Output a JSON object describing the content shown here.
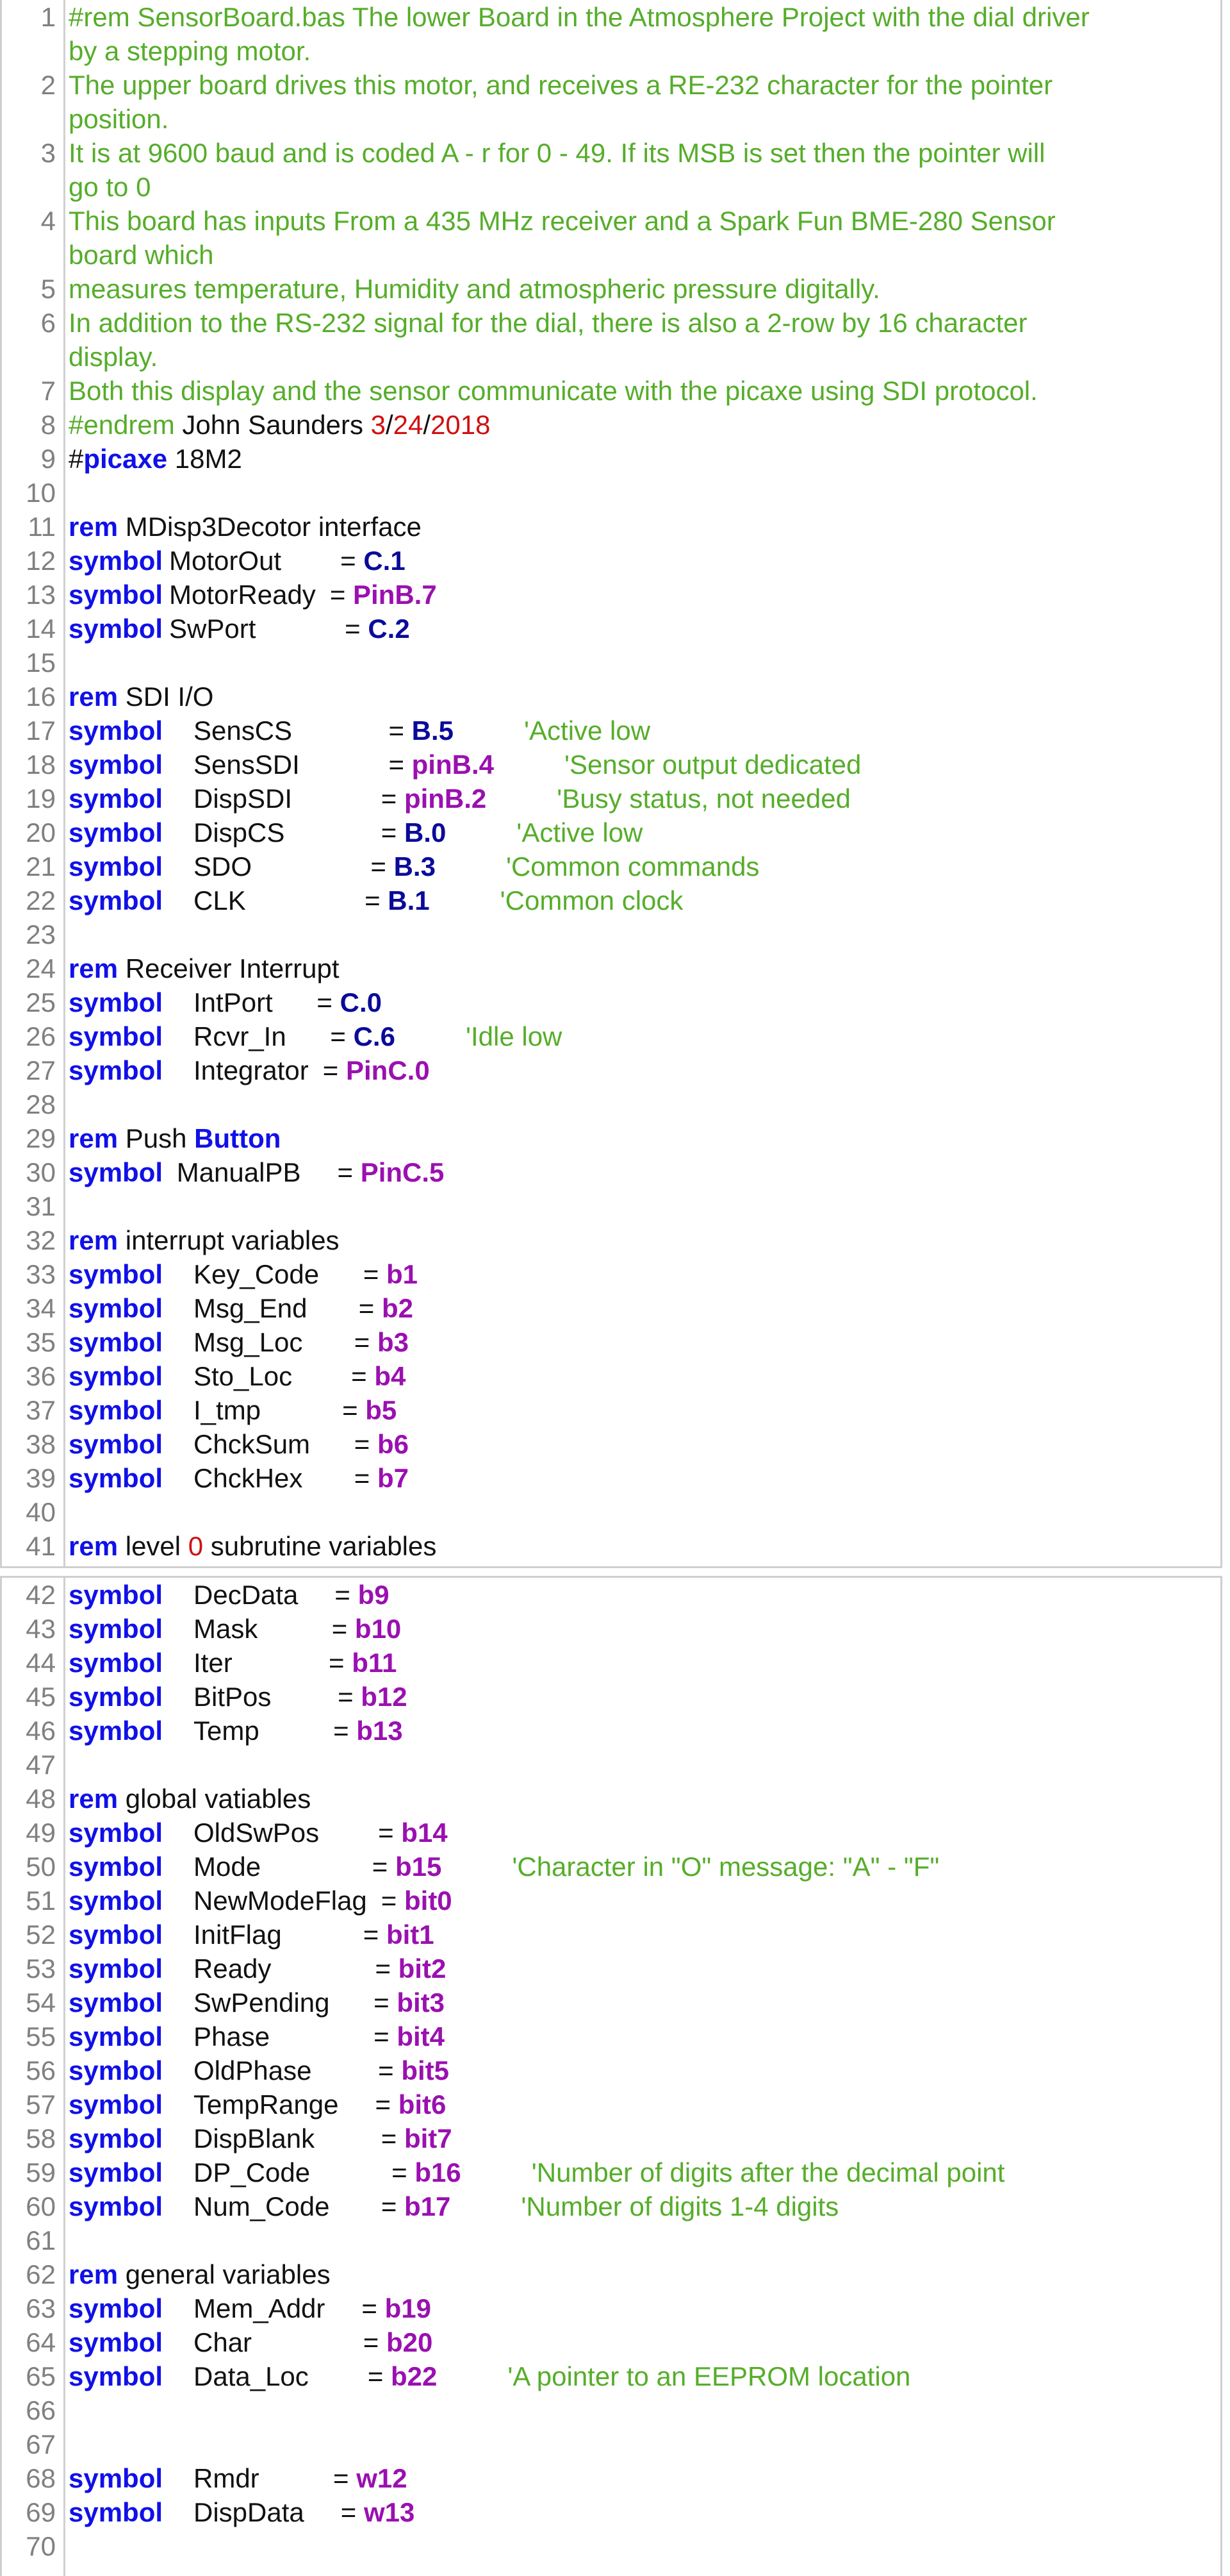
{
  "colors": {
    "keyword": "#1010e8",
    "pin": "#0a0a9a",
    "variable": "#9a10b0",
    "comment": "#56ad2a",
    "number": "#d01010",
    "line_number": "#808080"
  },
  "panels": [
    {
      "lines": [
        {
          "n": "1",
          "rows": [
            [
              {
                "c": "g",
                "s": "#rem SensorBoard.bas The lower Board in the Atmosphere Project with the dial driver"
              }
            ],
            [
              {
                "c": "g",
                "s": "by a stepping motor."
              }
            ]
          ]
        },
        {
          "n": "2",
          "rows": [
            [
              {
                "c": "g",
                "s": "The upper board drives this motor, and receives a RE-232 character for the pointer"
              }
            ],
            [
              {
                "c": "g",
                "s": "position."
              }
            ]
          ]
        },
        {
          "n": "3",
          "rows": [
            [
              {
                "c": "g",
                "s": "It is at 9600 baud and is coded  A - r for 0 - 49. If its MSB is set then the pointer will"
              }
            ],
            [
              {
                "c": "g",
                "s": "go to 0"
              }
            ]
          ]
        },
        {
          "n": "4",
          "rows": [
            [
              {
                "c": "g",
                "s": "This board has inputs From a 435 MHz receiver and a Spark Fun BME-280 Sensor"
              }
            ],
            [
              {
                "c": "g",
                "s": "board  which"
              }
            ]
          ]
        },
        {
          "n": "5",
          "rows": [
            [
              {
                "c": "g",
                "s": "measures temperature, Humidity and atmospheric pressure digitally."
              }
            ]
          ]
        },
        {
          "n": "6",
          "rows": [
            [
              {
                "c": "g",
                "s": "In addition to the RS-232 signal for the dial, there is also a 2-row by 16 character"
              }
            ],
            [
              {
                "c": "g",
                "s": "display."
              }
            ]
          ]
        },
        {
          "n": "7",
          "rows": [
            [
              {
                "c": "g",
                "s": "Both this display and the sensor communicate with the picaxe using SDI protocol."
              }
            ]
          ]
        },
        {
          "n": "8",
          "rows": [
            [
              {
                "c": "g",
                "s": "#endrem"
              },
              {
                "c": "t",
                "s": " John Saunders "
              },
              {
                "c": "r",
                "s": "3"
              },
              {
                "c": "t",
                "s": "/"
              },
              {
                "c": "r",
                "s": "24"
              },
              {
                "c": "t",
                "s": "/"
              },
              {
                "c": "r",
                "s": "2018"
              }
            ]
          ]
        },
        {
          "n": "9",
          "rows": [
            [
              {
                "c": "t",
                "s": "#"
              },
              {
                "c": "k",
                "s": "picaxe"
              },
              {
                "c": "t",
                "s": " 18M2"
              }
            ]
          ]
        },
        {
          "n": "10",
          "rows": [
            []
          ]
        },
        {
          "n": "11",
          "rows": [
            [
              {
                "c": "k",
                "s": "rem"
              },
              {
                "c": "t",
                "s": " MDisp3Decotor interface"
              }
            ]
          ]
        },
        {
          "n": "12",
          "sym": {
            "inline": true,
            "name": "MotorOut",
            "pad": "      ",
            "val": "C.1",
            "vc": "v"
          }
        },
        {
          "n": "13",
          "sym": {
            "inline": true,
            "name": "MotorReady",
            "pad": "",
            "val": "PinB.7",
            "vc": "p"
          }
        },
        {
          "n": "14",
          "sym": {
            "inline": true,
            "name": "SwPort",
            "pad": "          ",
            "val": "C.2",
            "vc": "v"
          }
        },
        {
          "n": "15",
          "rows": [
            []
          ]
        },
        {
          "n": "16",
          "rows": [
            [
              {
                "c": "k",
                "s": "rem"
              },
              {
                "c": "t",
                "s": " SDI I/O"
              }
            ]
          ]
        },
        {
          "n": "17",
          "sym": {
            "name": "SensCS",
            "pad": "           ",
            "val": "B.5",
            "vc": "v",
            "cmt": "'Active low"
          }
        },
        {
          "n": "18",
          "sym": {
            "name": "SensSDI",
            "pad": "          ",
            "val": "pinB.4",
            "vc": "p",
            "cmt": "'Sensor output dedicated"
          }
        },
        {
          "n": "19",
          "sym": {
            "name": "DispSDI",
            "pad": "          ",
            "val": "pinB.2",
            "vc": "p",
            "cmt": "'Busy  status, not needed"
          }
        },
        {
          "n": "20",
          "sym": {
            "name": "DispCS",
            "pad": "           ",
            "val": "B.0",
            "vc": "v",
            "cmt": "'Active low"
          }
        },
        {
          "n": "21",
          "sym": {
            "name": "SDO",
            "pad": "              ",
            "val": "B.3",
            "vc": "v",
            "cmt": "'Common commands"
          }
        },
        {
          "n": "22",
          "sym": {
            "name": "CLK",
            "pad": "              ",
            "val": "B.1",
            "vc": "v",
            "cmt": "'Common clock"
          }
        },
        {
          "n": "23",
          "rows": [
            []
          ]
        },
        {
          "n": "24",
          "rows": [
            [
              {
                "c": "k",
                "s": "rem"
              },
              {
                "c": "t",
                "s": " Receiver Interrupt"
              }
            ]
          ]
        },
        {
          "n": "25",
          "sym": {
            "name": "IntPort",
            "pad": "    ",
            "val": "C.0",
            "vc": "v"
          }
        },
        {
          "n": "26",
          "sym": {
            "name": "Rcvr_In",
            "pad": "    ",
            "val": "C.6",
            "vc": "v",
            "cmt": "'Idle low"
          }
        },
        {
          "n": "27",
          "sym": {
            "name": "Integrator",
            "pad": "",
            "val": "PinC.0",
            "vc": "p"
          }
        },
        {
          "n": "28",
          "rows": [
            []
          ]
        },
        {
          "n": "29",
          "rows": [
            [
              {
                "c": "k",
                "s": "rem"
              },
              {
                "c": "t",
                "s": " Push "
              },
              {
                "c": "k",
                "s": "Button"
              }
            ]
          ]
        },
        {
          "n": "30",
          "sym": {
            "inline": true,
            "name": " ManualPB",
            "pad": "   ",
            "val": "PinC.5",
            "vc": "p"
          }
        },
        {
          "n": "31",
          "rows": [
            []
          ]
        },
        {
          "n": "32",
          "rows": [
            [
              {
                "c": "k",
                "s": "rem"
              },
              {
                "c": "t",
                "s": " interrupt variables"
              }
            ]
          ]
        },
        {
          "n": "33",
          "sym": {
            "name": "Key_Code",
            "pad": "    ",
            "val": "b1",
            "vc": "p"
          }
        },
        {
          "n": "34",
          "sym": {
            "name": "Msg_End",
            "pad": "     ",
            "val": "b2",
            "vc": "p"
          }
        },
        {
          "n": "35",
          "sym": {
            "name": "Msg_Loc",
            "pad": "     ",
            "val": "b3",
            "vc": "p"
          }
        },
        {
          "n": "36",
          "sym": {
            "name": "Sto_Loc",
            "pad": "      ",
            "val": "b4",
            "vc": "p"
          }
        },
        {
          "n": "37",
          "sym": {
            "name": "I_tmp",
            "pad": "         ",
            "val": "b5",
            "vc": "p"
          }
        },
        {
          "n": "38",
          "sym": {
            "name": "ChckSum",
            "pad": "    ",
            "val": "b6",
            "vc": "p"
          }
        },
        {
          "n": "39",
          "sym": {
            "name": "ChckHex",
            "pad": "     ",
            "val": "b7",
            "vc": "p"
          }
        },
        {
          "n": "40",
          "rows": [
            []
          ]
        },
        {
          "n": "41",
          "rows": [
            [
              {
                "c": "k",
                "s": "rem"
              },
              {
                "c": "t",
                "s": " level "
              },
              {
                "c": "r",
                "s": "0"
              },
              {
                "c": "t",
                "s": " subrutine variables"
              }
            ]
          ]
        }
      ]
    },
    {
      "lines": [
        {
          "n": "42",
          "sym": {
            "name": "DecData",
            "pad": "   ",
            "val": "b9",
            "vc": "p"
          }
        },
        {
          "n": "43",
          "sym": {
            "name": "Mask",
            "pad": "        ",
            "val": "b10",
            "vc": "p"
          }
        },
        {
          "n": "44",
          "sym": {
            "name": "Iter",
            "pad": "           ",
            "val": "b11",
            "vc": "p"
          }
        },
        {
          "n": "45",
          "sym": {
            "name": "BitPos",
            "pad": "       ",
            "val": "b12",
            "vc": "p"
          }
        },
        {
          "n": "46",
          "sym": {
            "name": "Temp",
            "pad": "        ",
            "val": "b13",
            "vc": "p"
          }
        },
        {
          "n": "47",
          "rows": [
            []
          ]
        },
        {
          "n": "48",
          "rows": [
            [
              {
                "c": "k",
                "s": "rem"
              },
              {
                "c": "t",
                "s": " global vatiables"
              }
            ]
          ]
        },
        {
          "n": "49",
          "sym": {
            "name": "OldSwPos",
            "pad": "      ",
            "val": "b14",
            "vc": "p"
          }
        },
        {
          "n": "50",
          "sym": {
            "name": "Mode",
            "pad": "             ",
            "val": "b15",
            "vc": "p",
            "cmt": "'Character in \"O\" message: \"A\" - \"F\""
          }
        },
        {
          "n": "51",
          "sym": {
            "name": "NewModeFlag",
            "pad": "",
            "val": "bit0",
            "vc": "p"
          }
        },
        {
          "n": "52",
          "sym": {
            "name": "InitFlag",
            "pad": "         ",
            "val": "bit1",
            "vc": "p"
          }
        },
        {
          "n": "53",
          "sym": {
            "name": "Ready",
            "pad": "            ",
            "val": "bit2",
            "vc": "p"
          }
        },
        {
          "n": "54",
          "sym": {
            "name": "SwPending",
            "pad": "    ",
            "val": "bit3",
            "vc": "p"
          }
        },
        {
          "n": "55",
          "sym": {
            "name": "Phase",
            "pad": "            ",
            "val": "bit4",
            "vc": "p"
          }
        },
        {
          "n": "56",
          "sym": {
            "name": "OldPhase",
            "pad": "       ",
            "val": "bit5",
            "vc": "p"
          }
        },
        {
          "n": "57",
          "sym": {
            "name": "TempRange",
            "pad": "   ",
            "val": "bit6",
            "vc": "p"
          }
        },
        {
          "n": "58",
          "sym": {
            "name": "DispBlank",
            "pad": "       ",
            "val": "bit7",
            "vc": "p"
          }
        },
        {
          "n": "59",
          "sym": {
            "name": "DP_Code",
            "pad": "         ",
            "val": "b16",
            "vc": "p",
            "cmt": "'Number of digits after the decimal point"
          }
        },
        {
          "n": "60",
          "sym": {
            "name": "Num_Code",
            "pad": "     ",
            "val": "b17",
            "vc": "p",
            "cmt": "'Number of digits 1-4 digits"
          }
        },
        {
          "n": "61",
          "rows": [
            []
          ]
        },
        {
          "n": "62",
          "rows": [
            [
              {
                "c": "k",
                "s": "rem"
              },
              {
                "c": "t",
                "s": " general variables"
              }
            ]
          ]
        },
        {
          "n": "63",
          "sym": {
            "name": "Mem_Addr",
            "pad": "   ",
            "val": "b19",
            "vc": "p"
          }
        },
        {
          "n": "64",
          "sym": {
            "name": "Char",
            "pad": "             ",
            "val": "b20",
            "vc": "p"
          }
        },
        {
          "n": "65",
          "sym": {
            "name": "Data_Loc",
            "pad": "      ",
            "val": "b22",
            "vc": "p",
            "cmt": "'A pointer to an EEPROM location"
          }
        },
        {
          "n": "66",
          "rows": [
            []
          ]
        },
        {
          "n": "67",
          "rows": [
            []
          ]
        },
        {
          "n": "68",
          "sym": {
            "name": "  Rmdr",
            "pad": "        ",
            "val": "w12",
            "vc": "p"
          }
        },
        {
          "n": "69",
          "sym": {
            "name": "DispData",
            "pad": "   ",
            "val": "w13",
            "vc": "p"
          }
        },
        {
          "n": "70",
          "rows": [
            []
          ]
        }
      ]
    }
  ],
  "keyword_symbol": "symbol",
  "equals": "= "
}
